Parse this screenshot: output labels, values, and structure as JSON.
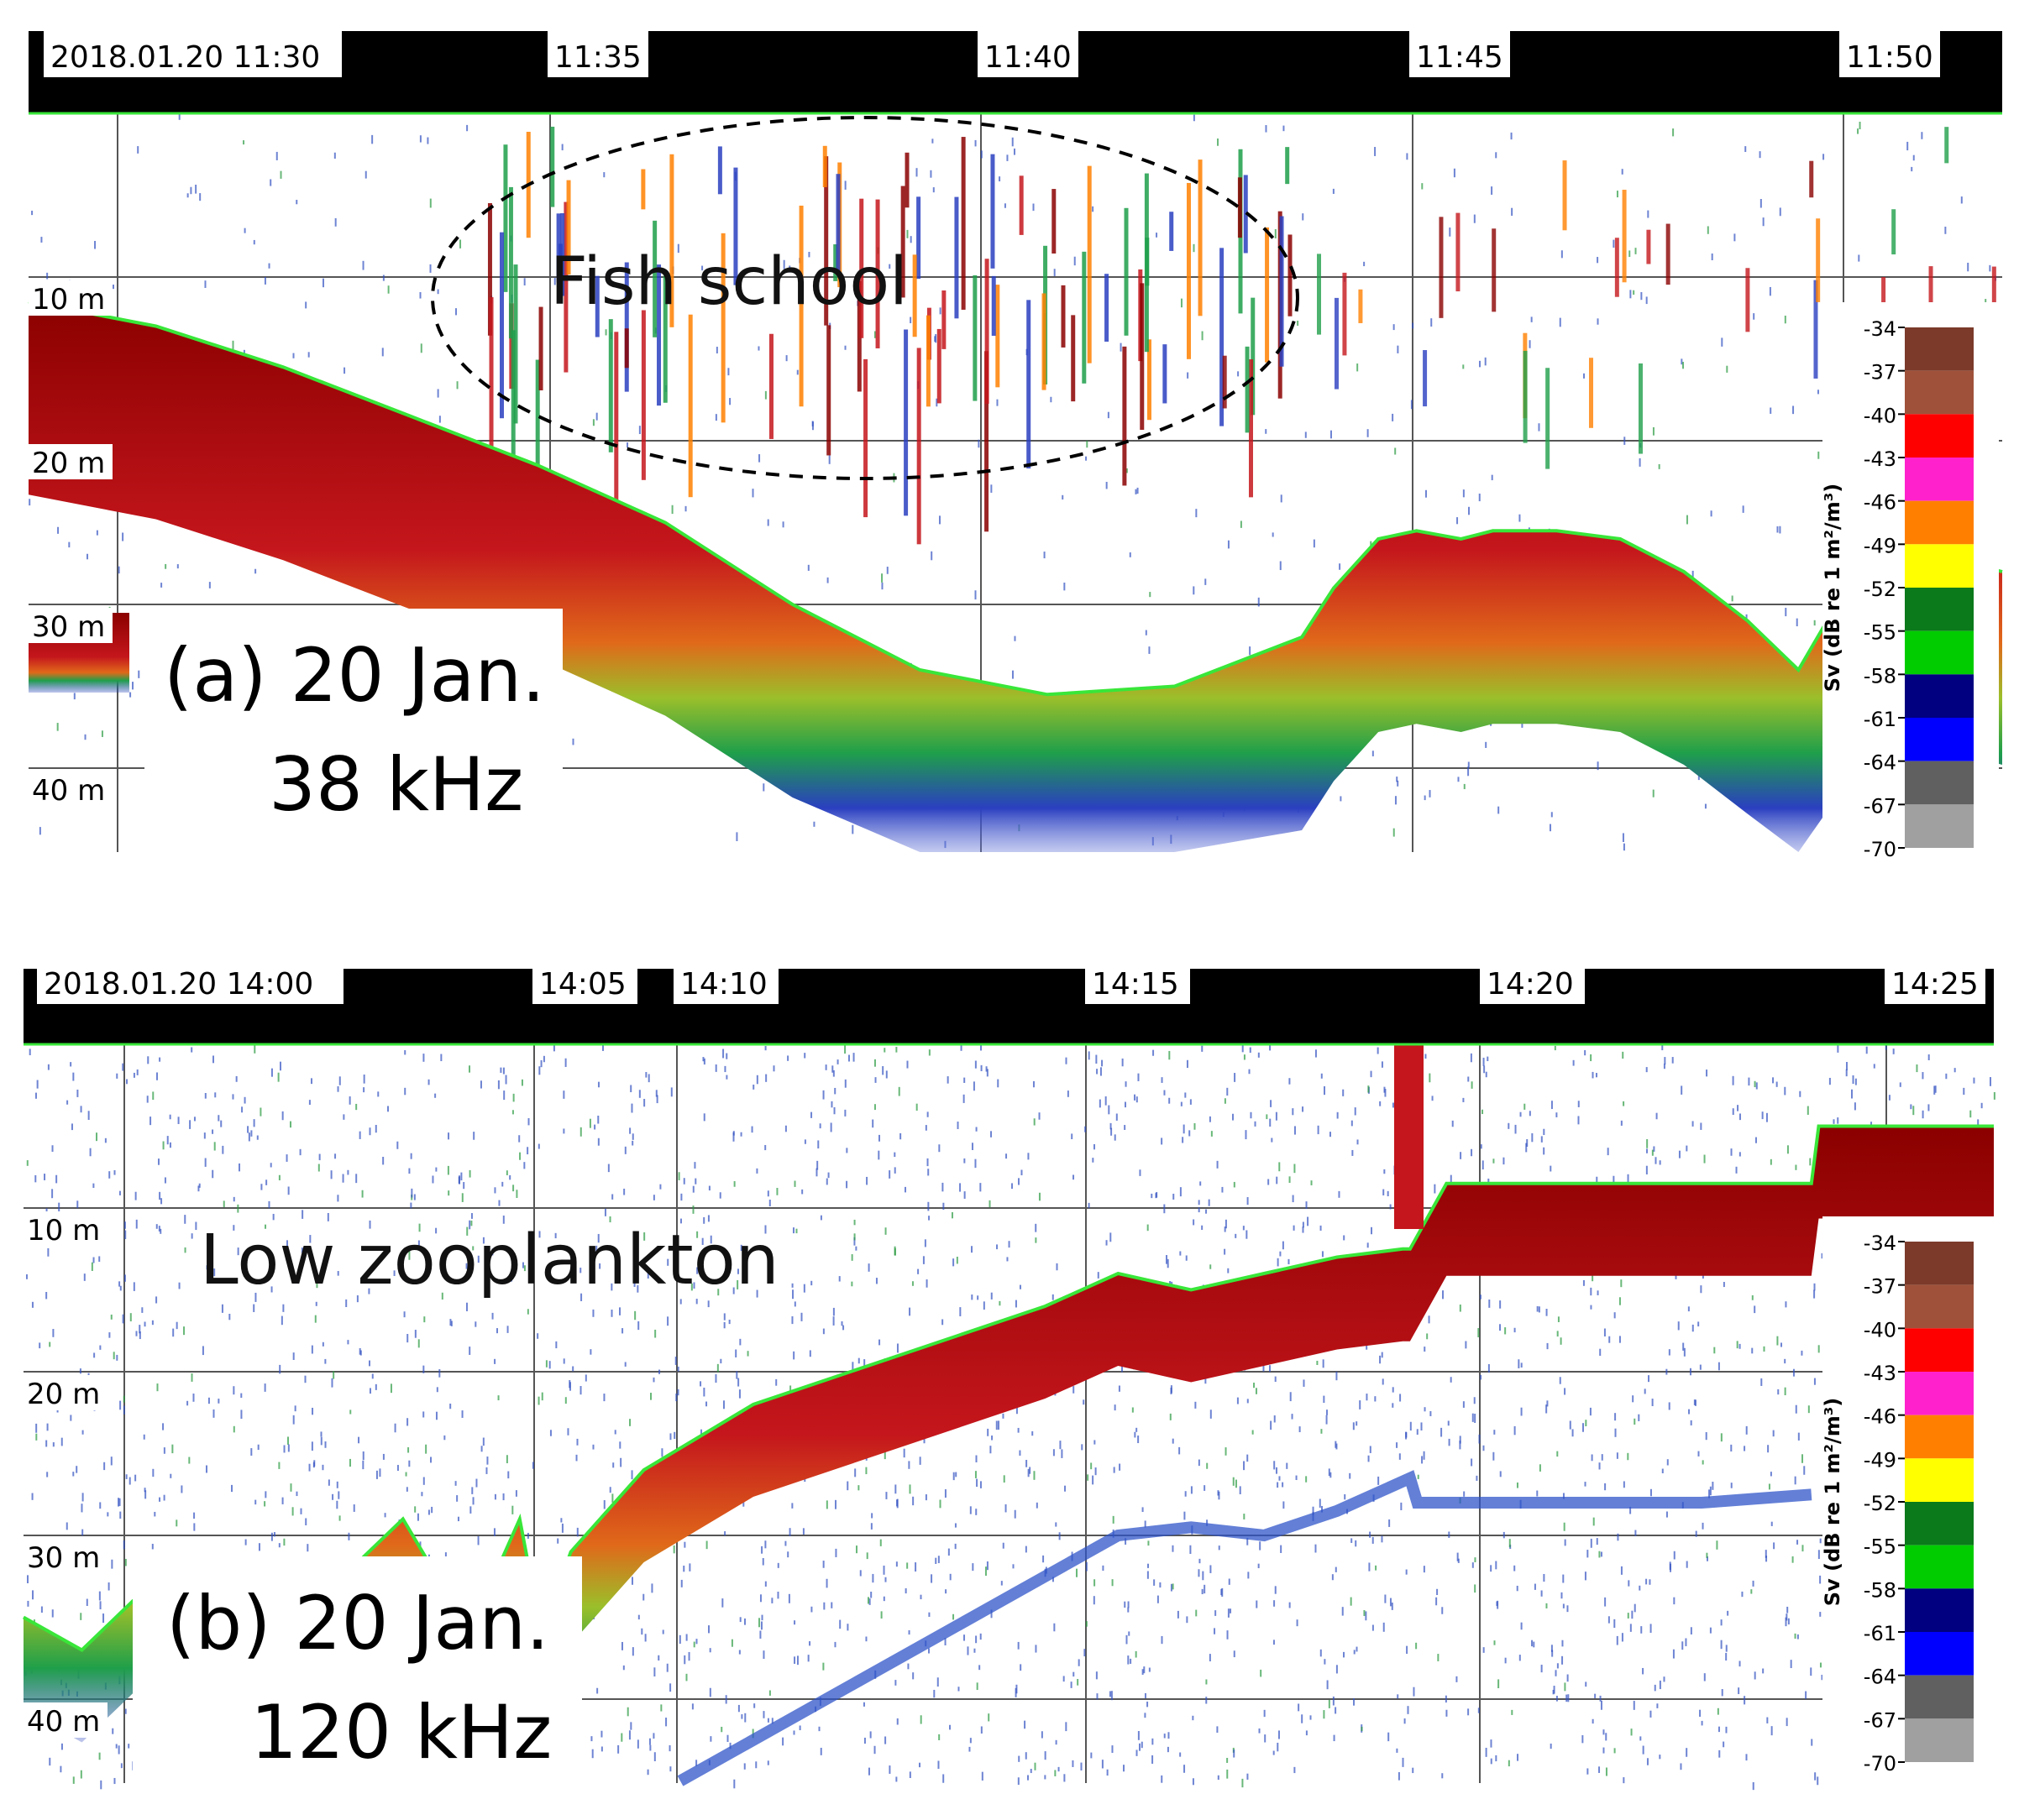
{
  "chart_data": [
    {
      "type": "heatmap",
      "panel_label": [
        "(a) 20 Jan.",
        "38 kHz"
      ],
      "annotation": "Fish school",
      "time_labels": [
        "2018.01.20 11:30",
        "11:35",
        "11:40",
        "11:45",
        "11:50"
      ],
      "x_range_min": [
        0,
        31
      ],
      "depth_labels": [
        "10 m",
        "20 m",
        "30 m",
        "40 m"
      ],
      "y_range_m": [
        0,
        45
      ],
      "seabed": {
        "x_min": [
          0,
          2,
          4,
          6,
          8,
          10,
          12,
          14,
          16,
          18,
          20,
          20.5,
          21.2,
          21.8,
          22.5,
          23,
          24,
          25,
          26,
          27,
          27.8,
          28.4,
          29,
          30,
          31
        ],
        "depth_m": [
          11.5,
          13,
          15.5,
          18.5,
          21.5,
          25,
          30,
          34,
          35.5,
          35,
          32,
          29,
          26,
          25.5,
          26,
          25.5,
          25.5,
          26,
          28,
          31,
          34,
          30,
          28,
          27,
          28
        ]
      },
      "colorbar": {
        "title": "Sv (dB re 1 m²/m³)",
        "ticks": [
          "-34",
          "-37",
          "-40",
          "-43",
          "-46",
          "-49",
          "-52",
          "-55",
          "-58",
          "-61",
          "-64",
          "-67",
          "-70"
        ],
        "colors": [
          "#7b3a2a",
          "#a0513a",
          "#ff0000",
          "#ff22cc",
          "#ff8000",
          "#ffff00",
          "#0a7a1a",
          "#00cc00",
          "#000080",
          "#0000ff",
          "#606060",
          "#a0a0a0"
        ]
      }
    },
    {
      "type": "heatmap",
      "panel_label": [
        "(b) 20 Jan.",
        "120 kHz"
      ],
      "annotation": "Low zooplankton",
      "time_labels": [
        "2018.01.20 14:00",
        "14:05",
        "14:10",
        "14:15",
        "14:20",
        "14:25"
      ],
      "x_range_min": [
        0,
        27
      ],
      "depth_labels": [
        "10 m",
        "20 m",
        "30 m",
        "40 m"
      ],
      "y_range_m": [
        0,
        45
      ],
      "seabed": {
        "x_min": [
          0,
          0.8,
          1.5,
          2.5,
          3.5,
          4.5,
          5.2,
          6,
          6.5,
          6.8,
          7.1,
          7.5,
          8.5,
          10,
          12,
          14,
          15,
          16,
          17,
          18,
          18.9,
          19,
          19.5,
          21,
          23,
          24.5,
          24.6,
          25.5,
          27
        ],
        "depth_m": [
          35,
          37,
          34,
          34,
          34,
          32,
          29,
          35,
          32,
          29,
          36,
          31,
          26,
          22,
          19,
          16,
          14,
          15,
          14,
          13,
          12.5,
          12.5,
          8.5,
          8.5,
          8.5,
          8.5,
          5,
          5,
          5
        ]
      },
      "second_echo": {
        "x_min": [
          9,
          11,
          13,
          15,
          16,
          17,
          18,
          19,
          19.1,
          21,
          23,
          24.5
        ],
        "depth_m": [
          45,
          40,
          35,
          30,
          29.5,
          30,
          28.5,
          26.5,
          28,
          28,
          28,
          27.5
        ]
      },
      "colorbar": {
        "title": "Sv (dB re 1 m²/m³)",
        "ticks": [
          "-34",
          "-37",
          "-40",
          "-43",
          "-46",
          "-49",
          "-52",
          "-55",
          "-58",
          "-61",
          "-64",
          "-67",
          "-70"
        ],
        "colors": [
          "#7b3a2a",
          "#a0513a",
          "#ff0000",
          "#ff22cc",
          "#ff8000",
          "#ffff00",
          "#0a7a1a",
          "#00cc00",
          "#000080",
          "#0000ff",
          "#606060",
          "#a0a0a0"
        ]
      }
    }
  ]
}
